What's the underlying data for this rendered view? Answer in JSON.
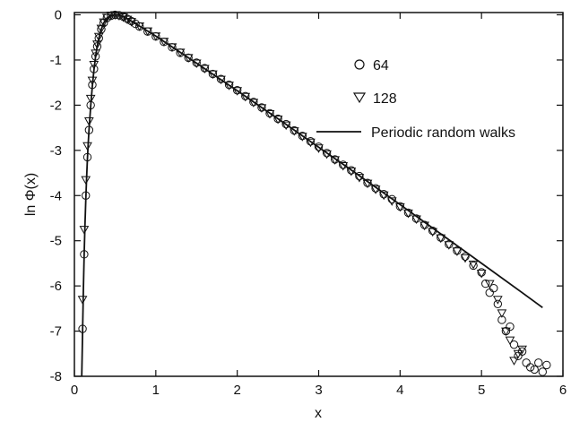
{
  "chart_data": {
    "type": "scatter",
    "title": "",
    "xlabel": "x",
    "ylabel": "ln Φ(x)",
    "xlim": [
      0,
      6
    ],
    "ylim": [
      -8,
      0.05
    ],
    "xticks": [
      0,
      1,
      2,
      3,
      4,
      5,
      6
    ],
    "yticks": [
      0,
      -1,
      -2,
      -3,
      -4,
      -5,
      -6,
      -7,
      -8
    ],
    "grid": false,
    "legend_position": "top-right",
    "series": [
      {
        "name": "64",
        "marker": "circle",
        "x": [
          0.1,
          0.12,
          0.14,
          0.16,
          0.18,
          0.2,
          0.22,
          0.24,
          0.26,
          0.28,
          0.3,
          0.33,
          0.36,
          0.4,
          0.45,
          0.5,
          0.55,
          0.6,
          0.65,
          0.7,
          0.75,
          0.8,
          0.9,
          1.0,
          1.1,
          1.2,
          1.3,
          1.4,
          1.5,
          1.6,
          1.7,
          1.8,
          1.9,
          2.0,
          2.1,
          2.2,
          2.3,
          2.4,
          2.5,
          2.6,
          2.7,
          2.8,
          2.9,
          3.0,
          3.1,
          3.2,
          3.3,
          3.4,
          3.5,
          3.6,
          3.7,
          3.8,
          3.9,
          4.0,
          4.1,
          4.2,
          4.3,
          4.4,
          4.5,
          4.6,
          4.7,
          4.8,
          4.9,
          5.0,
          5.05,
          5.1,
          5.15,
          5.2,
          5.25,
          5.3,
          5.35,
          5.4,
          5.45,
          5.5,
          5.55,
          5.6,
          5.65,
          5.7,
          5.75,
          5.8
        ],
        "y": [
          -6.95,
          -5.3,
          -4.0,
          -3.15,
          -2.55,
          -2.0,
          -1.55,
          -1.2,
          -0.92,
          -0.7,
          -0.52,
          -0.32,
          -0.18,
          -0.07,
          -0.02,
          0.0,
          -0.01,
          -0.04,
          -0.09,
          -0.14,
          -0.2,
          -0.26,
          -0.37,
          -0.48,
          -0.6,
          -0.72,
          -0.84,
          -0.95,
          -1.06,
          -1.18,
          -1.31,
          -1.42,
          -1.55,
          -1.67,
          -1.8,
          -1.93,
          -2.05,
          -2.18,
          -2.3,
          -2.42,
          -2.56,
          -2.68,
          -2.8,
          -2.92,
          -3.06,
          -3.2,
          -3.32,
          -3.44,
          -3.57,
          -3.72,
          -3.84,
          -3.97,
          -4.08,
          -4.24,
          -4.38,
          -4.51,
          -4.65,
          -4.78,
          -4.93,
          -5.08,
          -5.22,
          -5.35,
          -5.55,
          -5.7,
          -5.95,
          -6.15,
          -6.05,
          -6.4,
          -6.75,
          -7.0,
          -6.9,
          -7.3,
          -7.55,
          -7.45,
          -7.7,
          -7.8,
          -7.85,
          -7.7,
          -7.9,
          -7.75
        ]
      },
      {
        "name": "128",
        "marker": "triangle-down",
        "x": [
          0.1,
          0.12,
          0.14,
          0.16,
          0.18,
          0.2,
          0.22,
          0.24,
          0.26,
          0.28,
          0.3,
          0.33,
          0.36,
          0.4,
          0.45,
          0.5,
          0.55,
          0.6,
          0.65,
          0.7,
          0.8,
          0.9,
          1.0,
          1.1,
          1.2,
          1.3,
          1.4,
          1.5,
          1.6,
          1.7,
          1.8,
          1.9,
          2.0,
          2.1,
          2.2,
          2.3,
          2.4,
          2.5,
          2.6,
          2.7,
          2.8,
          2.9,
          3.0,
          3.1,
          3.2,
          3.3,
          3.4,
          3.5,
          3.6,
          3.7,
          3.8,
          3.9,
          4.0,
          4.1,
          4.2,
          4.3,
          4.4,
          4.5,
          4.6,
          4.7,
          4.8,
          4.9,
          5.0,
          5.1,
          5.2,
          5.25,
          5.3,
          5.35,
          5.4,
          5.45,
          5.5
        ],
        "y": [
          -6.3,
          -4.75,
          -3.65,
          -2.9,
          -2.35,
          -1.85,
          -1.45,
          -1.1,
          -0.85,
          -0.65,
          -0.48,
          -0.3,
          -0.16,
          -0.06,
          -0.01,
          0.0,
          -0.02,
          -0.05,
          -0.1,
          -0.15,
          -0.25,
          -0.36,
          -0.47,
          -0.59,
          -0.71,
          -0.83,
          -0.95,
          -1.07,
          -1.19,
          -1.31,
          -1.43,
          -1.56,
          -1.68,
          -1.81,
          -1.94,
          -2.06,
          -2.19,
          -2.31,
          -2.44,
          -2.57,
          -2.69,
          -2.82,
          -2.95,
          -3.08,
          -3.21,
          -3.34,
          -3.46,
          -3.6,
          -3.73,
          -3.86,
          -3.99,
          -4.12,
          -4.25,
          -4.39,
          -4.52,
          -4.66,
          -4.8,
          -4.94,
          -5.09,
          -5.23,
          -5.38,
          -5.52,
          -5.72,
          -5.95,
          -6.3,
          -6.6,
          -7.0,
          -7.2,
          -7.65,
          -7.5,
          -7.4
        ]
      },
      {
        "name": "Periodic random walks",
        "marker": "line",
        "x": [
          0.09,
          0.1,
          0.11,
          0.12,
          0.13,
          0.14,
          0.15,
          0.16,
          0.17,
          0.18,
          0.19,
          0.2,
          0.22,
          0.24,
          0.26,
          0.28,
          0.3,
          0.33,
          0.36,
          0.4,
          0.45,
          0.5,
          0.55,
          0.6,
          0.7,
          0.8,
          1.0,
          1.5,
          2.0,
          2.5,
          3.0,
          3.5,
          4.0,
          4.5,
          5.0,
          5.5,
          5.75
        ],
        "y": [
          -8.0,
          -7.05,
          -6.1,
          -5.3,
          -4.65,
          -4.1,
          -3.62,
          -3.2,
          -2.85,
          -2.55,
          -2.27,
          -2.02,
          -1.58,
          -1.22,
          -0.93,
          -0.7,
          -0.52,
          -0.32,
          -0.18,
          -0.07,
          -0.02,
          0.0,
          -0.01,
          -0.04,
          -0.14,
          -0.25,
          -0.47,
          -1.07,
          -1.68,
          -2.3,
          -2.93,
          -3.56,
          -4.2,
          -4.85,
          -5.5,
          -6.15,
          -6.48
        ]
      }
    ]
  },
  "legend": {
    "items": [
      "64",
      "128",
      "Periodic random walks"
    ]
  }
}
